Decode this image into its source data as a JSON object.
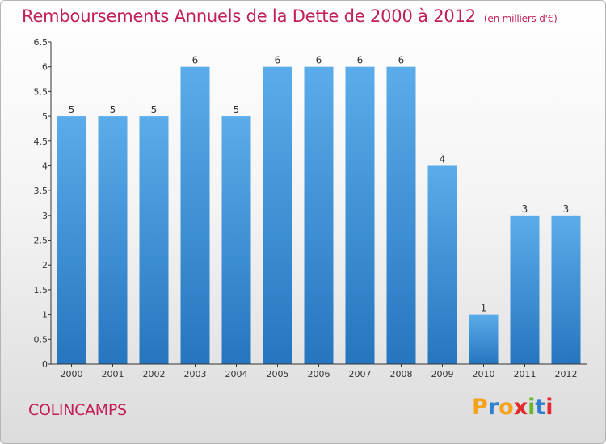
{
  "title": "Remboursements Annuels de la Dette de 2000 à 2012",
  "unit": "(en milliers d'€)",
  "commune": "COLINCAMPS",
  "logo": {
    "letters": [
      "P",
      "r",
      "o",
      "x",
      "i",
      "t",
      "i"
    ],
    "colors": [
      "#f7a21b",
      "#2e7fd0",
      "#f7a21b",
      "#e2292e",
      "#6ab531",
      "#2e7fd0",
      "#e2292e"
    ]
  },
  "colors": {
    "bar_top": "#5aacea",
    "bar_bottom": "#2676bf",
    "title": "#c41e5a"
  },
  "chart_data": {
    "type": "bar",
    "categories": [
      "2000",
      "2001",
      "2002",
      "2003",
      "2004",
      "2005",
      "2006",
      "2007",
      "2008",
      "2009",
      "2010",
      "2011",
      "2012"
    ],
    "values": [
      5,
      5,
      5,
      6,
      5,
      6,
      6,
      6,
      6,
      4,
      1,
      3,
      3
    ],
    "yticks": [
      "0",
      "0.5",
      "1",
      "1.5",
      "2",
      "2.5",
      "3",
      "3.5",
      "4",
      "4.5",
      "5",
      "5.5",
      "6",
      "6.5"
    ],
    "title": "Remboursements Annuels de la Dette de 2000 à 2012",
    "xlabel": "",
    "ylabel": "",
    "ylim": [
      0,
      6.5
    ],
    "grid": false
  }
}
